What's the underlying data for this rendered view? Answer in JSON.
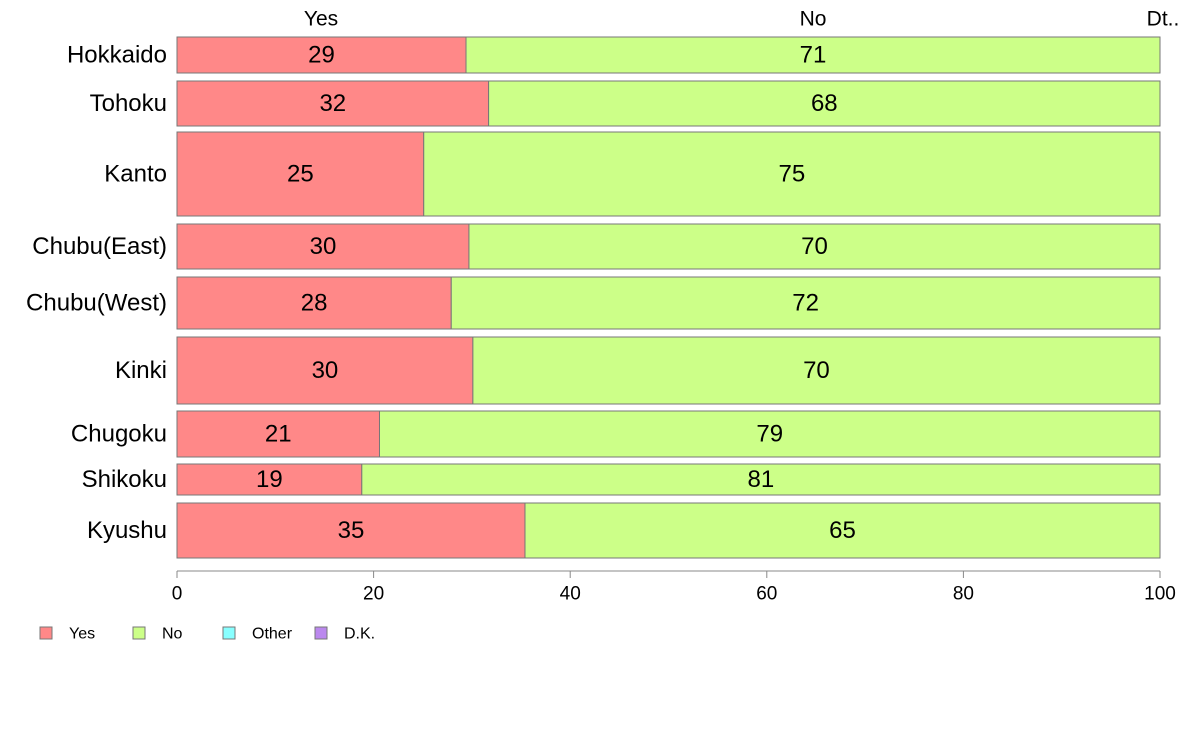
{
  "chart_data": {
    "type": "bar",
    "orientation": "horizontal",
    "stacked": true,
    "categories": [
      "Hokkaido",
      "Tohoku",
      "Kanto",
      "Chubu(East)",
      "Chubu(West)",
      "Kinki",
      "Chugoku",
      "Shikoku",
      "Kyushu"
    ],
    "series": [
      {
        "name": "Yes",
        "color": "#ff8888",
        "values": [
          29.4,
          31.7,
          25.1,
          29.7,
          27.9,
          30.1,
          20.6,
          18.8,
          35.4
        ],
        "labels": [
          "29",
          "32",
          "25",
          "30",
          "28",
          "30",
          "21",
          "19",
          "35"
        ]
      },
      {
        "name": "No",
        "color": "#ccff88",
        "values": [
          70.6,
          68.3,
          74.9,
          70.3,
          72.1,
          69.9,
          79.4,
          81.2,
          64.6
        ],
        "labels": [
          "71",
          "68",
          "75",
          "70",
          "72",
          "70",
          "79",
          "81",
          "65"
        ]
      },
      {
        "name": "Other",
        "color": "#88ffff",
        "values": [
          0,
          0,
          0,
          0,
          0,
          0,
          0,
          0,
          0
        ]
      },
      {
        "name": "D.K.",
        "color": "#bb88ee",
        "values": [
          0,
          0,
          0,
          0,
          0,
          0,
          0,
          0,
          0
        ]
      }
    ],
    "top_labels": [
      "Yes",
      "No",
      "Dt.."
    ],
    "xlim": [
      0,
      100
    ],
    "xticks": [
      "0",
      "20",
      "40",
      "60",
      "80",
      "100"
    ],
    "grid": false,
    "legend": [
      "Yes",
      "No",
      "Other",
      "D.K."
    ],
    "legend_position": "bottom-left"
  }
}
